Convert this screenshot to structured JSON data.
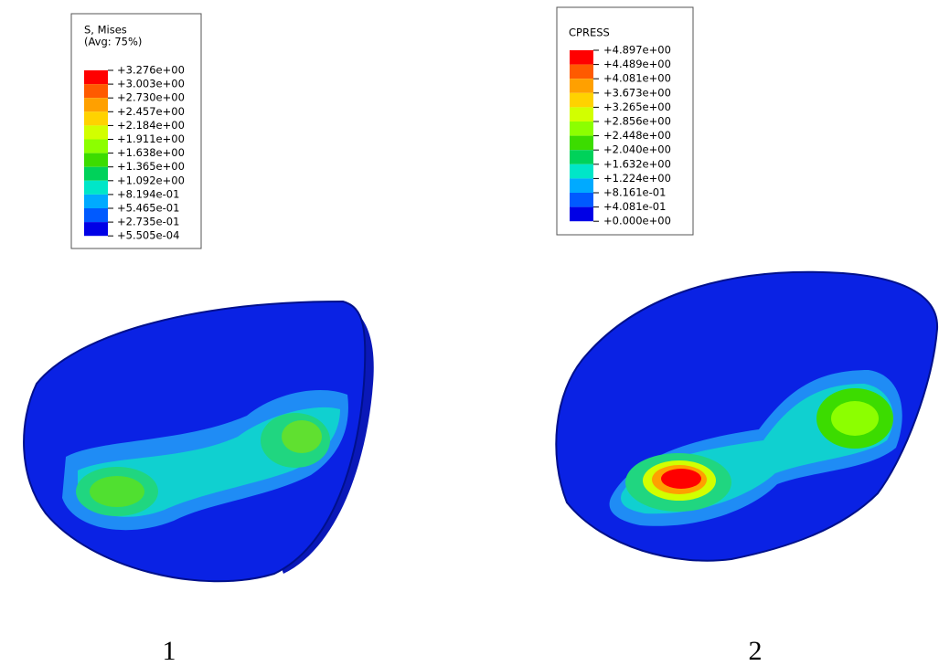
{
  "panels": [
    {
      "legend": {
        "title": [
          "S, Mises",
          "(Avg: 75%)"
        ],
        "labels": [
          "+3.276e+00",
          "+3.003e+00",
          "+2.730e+00",
          "+2.457e+00",
          "+2.184e+00",
          "+1.911e+00",
          "+1.638e+00",
          "+1.365e+00",
          "+1.092e+00",
          "+8.194e-01",
          "+5.465e-01",
          "+2.735e-01",
          "+5.505e-04"
        ],
        "colors": [
          "#ff0000",
          "#ff5a00",
          "#ffa000",
          "#ffd200",
          "#d2ff00",
          "#8cff00",
          "#3cdc00",
          "#00d25a",
          "#00e6c8",
          "#00aaff",
          "#005aff",
          "#0000e6"
        ]
      },
      "caption": "1"
    },
    {
      "legend": {
        "title": [
          "CPRESS"
        ],
        "labels": [
          "+4.897e+00",
          "+4.489e+00",
          "+4.081e+00",
          "+3.673e+00",
          "+3.265e+00",
          "+2.856e+00",
          "+2.448e+00",
          "+2.040e+00",
          "+1.632e+00",
          "+1.224e+00",
          "+8.161e-01",
          "+4.081e-01",
          "+0.000e+00"
        ],
        "colors": [
          "#ff0000",
          "#ff5a00",
          "#ffa000",
          "#ffd200",
          "#d2ff00",
          "#8cff00",
          "#3cdc00",
          "#00d25a",
          "#00e6c8",
          "#00aaff",
          "#005aff",
          "#0000e6"
        ]
      },
      "caption": "2"
    }
  ]
}
